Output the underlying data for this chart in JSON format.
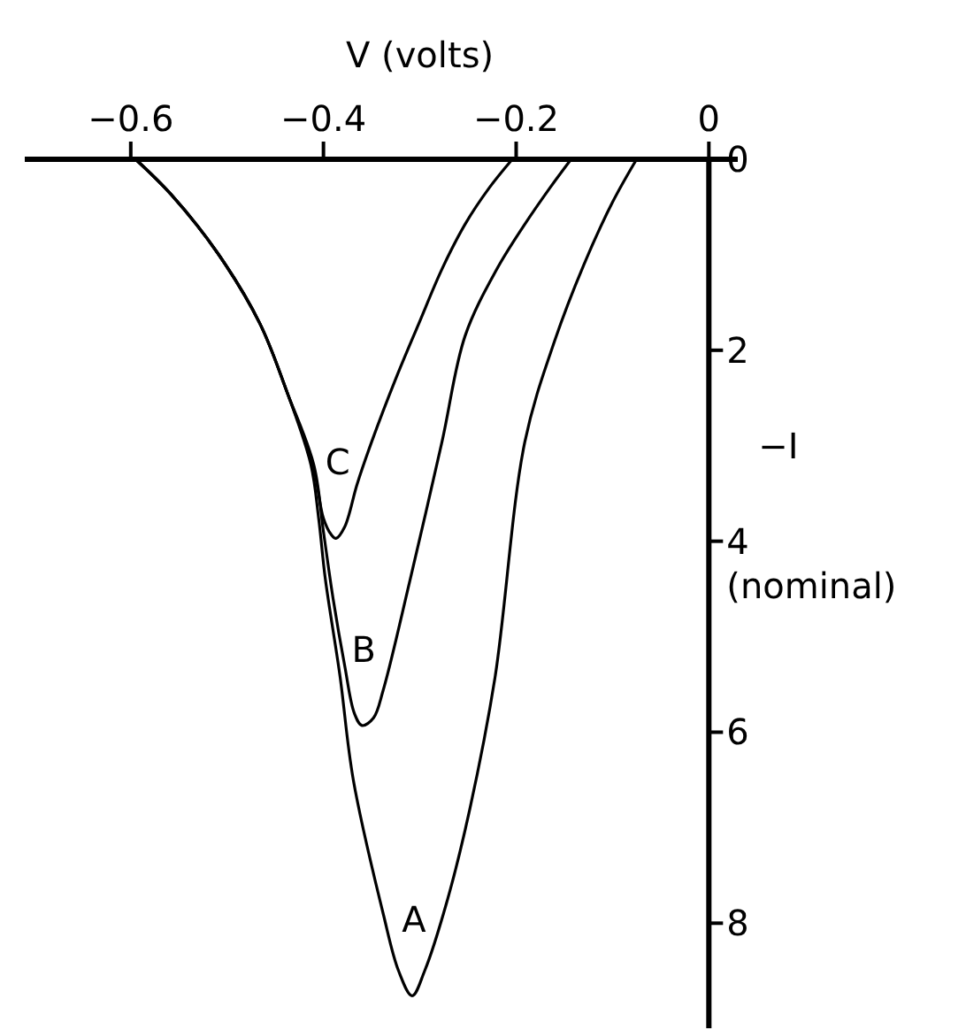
{
  "chart_data": {
    "type": "line",
    "xlabel": "V (volts)",
    "ylabel": "−I (nominal)",
    "xlim": [
      -0.71,
      0.03
    ],
    "xticks": [
      -0.6,
      -0.4,
      -0.2,
      0
    ],
    "ylim": [
      9.1,
      0
    ],
    "yticks": [
      0,
      2,
      4,
      6,
      8
    ],
    "grid": false,
    "marker": "none",
    "line_style": "solid",
    "series": [
      {
        "name": "A",
        "color": "#000000",
        "x": [
          -0.595,
          -0.558,
          -0.51,
          -0.466,
          -0.437,
          -0.413,
          -0.405,
          -0.398,
          -0.383,
          -0.369,
          -0.338,
          -0.322,
          -0.308,
          -0.295,
          -0.272,
          -0.248,
          -0.222,
          -0.191,
          -0.16,
          -0.13,
          -0.1,
          -0.075
        ],
        "values": [
          0,
          0.37,
          0.98,
          1.72,
          2.46,
          3.2,
          3.76,
          4.4,
          5.4,
          6.5,
          7.9,
          8.5,
          8.76,
          8.5,
          7.78,
          6.8,
          5.43,
          2.96,
          1.9,
          1.11,
          0.45,
          0
        ]
      },
      {
        "name": "B",
        "color": "#000000",
        "x": [
          -0.595,
          -0.558,
          -0.51,
          -0.466,
          -0.437,
          -0.41,
          -0.4,
          -0.39,
          -0.378,
          -0.368,
          -0.36,
          -0.348,
          -0.338,
          -0.31,
          -0.277,
          -0.253,
          -0.22,
          -0.191,
          -0.165,
          -0.143
        ],
        "values": [
          0,
          0.37,
          0.98,
          1.72,
          2.46,
          3.2,
          3.9,
          4.6,
          5.3,
          5.8,
          5.93,
          5.85,
          5.56,
          4.4,
          2.96,
          1.85,
          1.15,
          0.68,
          0.3,
          0
        ]
      },
      {
        "name": "C",
        "color": "#000000",
        "x": [
          -0.595,
          -0.558,
          -0.51,
          -0.466,
          -0.437,
          -0.411,
          -0.4,
          -0.392,
          -0.387,
          -0.378,
          -0.365,
          -0.35,
          -0.325,
          -0.301,
          -0.277,
          -0.253,
          -0.228,
          -0.204
        ],
        "values": [
          0,
          0.37,
          0.98,
          1.72,
          2.46,
          3.2,
          3.76,
          3.93,
          3.97,
          3.85,
          3.4,
          2.96,
          2.3,
          1.72,
          1.15,
          0.68,
          0.3,
          0
        ]
      }
    ]
  }
}
